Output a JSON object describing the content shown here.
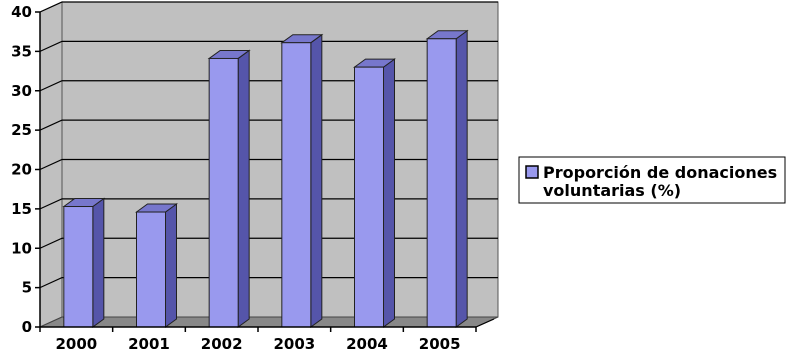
{
  "chart_data": {
    "type": "bar",
    "title": "",
    "xlabel": "",
    "ylabel": "",
    "categories": [
      "2000",
      "2001",
      "2002",
      "2003",
      "2004",
      "2005"
    ],
    "series": [
      {
        "name": "Proporción de donaciones voluntarias (%)",
        "values": [
          15.3,
          14.6,
          34.1,
          36.1,
          33.0,
          36.6
        ]
      }
    ],
    "ylim": [
      0,
      40
    ],
    "yticks": [
      "0",
      "5",
      "10",
      "15",
      "20",
      "25",
      "30",
      "35",
      "40"
    ],
    "grid": true,
    "style": "3d",
    "legend": {
      "position": "right",
      "lines": [
        "Proporción de donaciones",
        "voluntarias (%)"
      ]
    },
    "colors": {
      "bar_front": "#9999ee",
      "bar_side": "#5555aa",
      "bar_top": "#7777cc",
      "wall": "#c0c0c0",
      "floor": "#888888",
      "grid": "#000000"
    }
  }
}
